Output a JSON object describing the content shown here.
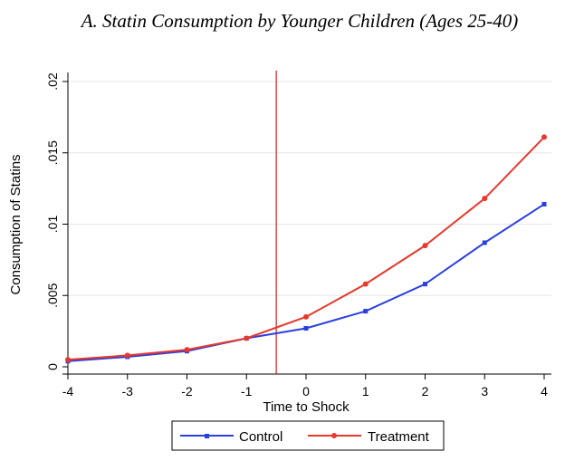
{
  "chart_data": {
    "type": "line",
    "title": "A. Statin Consumption by Younger Children (Ages 25-40)",
    "xlabel": "Time to Shock",
    "ylabel": "Consumption of Statins",
    "x": [
      -4,
      -3,
      -2,
      -1,
      0,
      1,
      2,
      3,
      4
    ],
    "x_ticks": [
      "-4",
      "-3",
      "-2",
      "-1",
      "0",
      "1",
      "2",
      "3",
      "4"
    ],
    "y_ticks": [
      0,
      0.005,
      0.01,
      0.015,
      0.02
    ],
    "y_tick_labels": [
      "0",
      ".005",
      ".01",
      ".015",
      ".02"
    ],
    "xlim": [
      -4,
      4
    ],
    "ylim": [
      0,
      0.02
    ],
    "grid": true,
    "vline_x": -0.5,
    "legend_position": "bottom",
    "series": [
      {
        "name": "Control",
        "color": "#2a3fe0",
        "marker": "square",
        "values": [
          0.0004,
          0.0007,
          0.0011,
          0.002,
          0.0027,
          0.0039,
          0.0058,
          0.0087,
          0.0114
        ]
      },
      {
        "name": "Treatment",
        "color": "#e8382c",
        "marker": "circle",
        "values": [
          0.0005,
          0.0008,
          0.0012,
          0.002,
          0.0035,
          0.0058,
          0.0085,
          0.0118,
          0.0161
        ]
      }
    ],
    "vline_color": "#cc1f1f"
  }
}
